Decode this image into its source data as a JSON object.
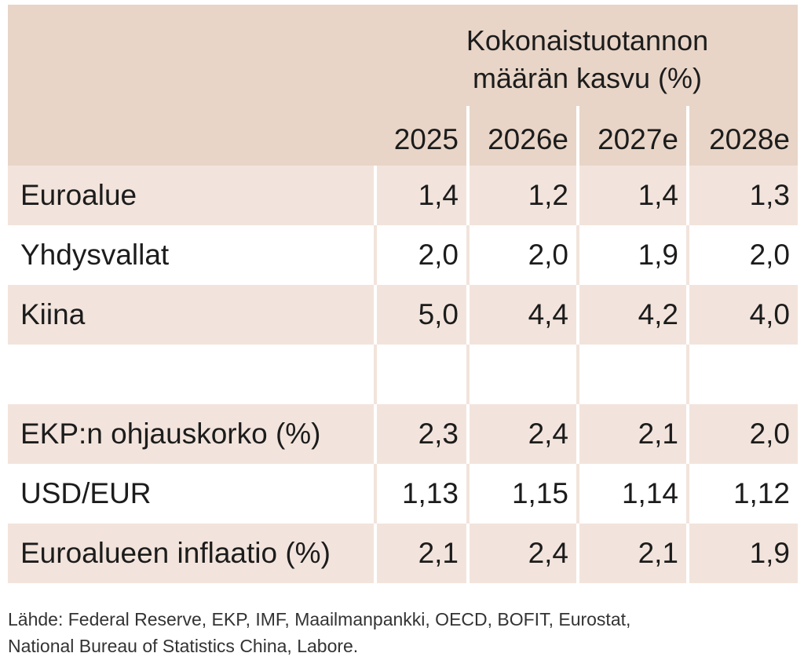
{
  "chart_data": {
    "type": "table",
    "title": "Kokonaistuotannon määrän kasvu (%)",
    "title_lines": [
      "Kokonaistuotannon",
      "määrän kasvu (%)"
    ],
    "columns": [
      "2025",
      "2026e",
      "2027e",
      "2028e"
    ],
    "rows": [
      {
        "label": "Euroalue",
        "values": [
          "1,4",
          "1,2",
          "1,4",
          "1,3"
        ]
      },
      {
        "label": "Yhdysvallat",
        "values": [
          "2,0",
          "2,0",
          "1,9",
          "2,0"
        ]
      },
      {
        "label": "Kiina",
        "values": [
          "5,0",
          "4,4",
          "4,2",
          "4,0"
        ]
      },
      {
        "label": "",
        "values": [
          "",
          "",
          "",
          ""
        ]
      },
      {
        "label": "EKP:n ohjauskorko (%)",
        "values": [
          "2,3",
          "2,4",
          "2,1",
          "2,0"
        ]
      },
      {
        "label": "USD/EUR",
        "values": [
          "1,13",
          "1,15",
          "1,14",
          "1,12"
        ]
      },
      {
        "label": "Euroalueen inflaatio (%)",
        "values": [
          "2,1",
          "2,4",
          "2,1",
          "1,9"
        ]
      }
    ],
    "colors": {
      "header": "#e8d5c7",
      "shaded_row": "#f2e4dc",
      "plain_row": "#ffffff"
    }
  },
  "footer": {
    "line1": "Lähde: Federal Reserve, EKP, IMF, Maailmanpankki, OECD, BOFIT, Eurostat,",
    "line2": "National Bureau of Statistics China, Labore."
  }
}
